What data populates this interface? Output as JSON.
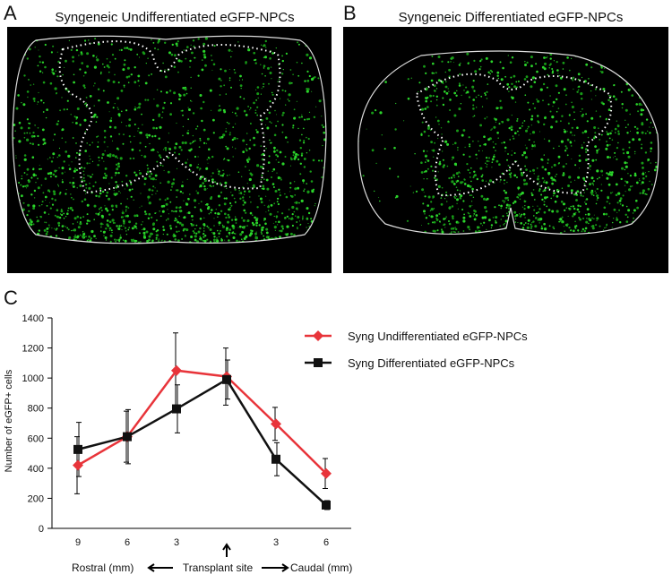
{
  "panels": [
    {
      "label": "A",
      "title": "Syngeneic Undifferentiated eGFP-NPCs"
    },
    {
      "label": "B",
      "title": "Syngeneic Differentiated eGFP-NPCs"
    }
  ],
  "chart_data": {
    "type": "line",
    "panel_label": "C",
    "y_label": "Number of eGFP+ cells",
    "categories": [
      "9",
      "6",
      "3",
      null,
      "3",
      "6"
    ],
    "ylim": [
      0,
      1400
    ],
    "yticks": [
      0,
      200,
      400,
      600,
      800,
      1000,
      1200,
      1400
    ],
    "annotations": [
      "Rostral (mm)",
      "Transplant site",
      "Caudal (mm)"
    ],
    "series": [
      {
        "name": "Syng Undifferentiated eGFP-NPCs",
        "color": "#e8343a",
        "marker": "diamond",
        "values": [
          420,
          610,
          1050,
          1010,
          695,
          365
        ],
        "errors": [
          190,
          170,
          250,
          190,
          110,
          100
        ]
      },
      {
        "name": "Syng Differentiated eGFP-NPCs",
        "color": "#111111",
        "marker": "square",
        "values": [
          525,
          610,
          795,
          990,
          460,
          155
        ],
        "errors": [
          180,
          180,
          160,
          130,
          110,
          30
        ]
      }
    ]
  }
}
